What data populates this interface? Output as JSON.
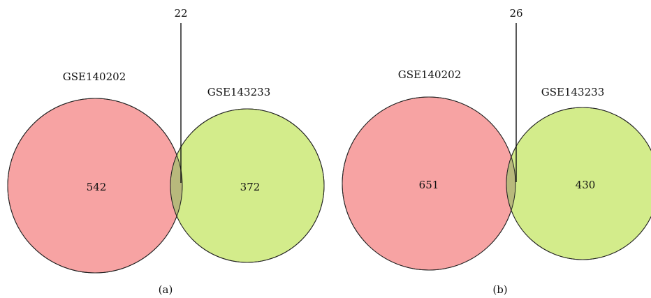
{
  "colors": {
    "set_a_fill": "#f7a3a3",
    "set_b_fill": "#d3ec8b",
    "overlap_fill": "#b8b97c",
    "stroke": "#222222"
  },
  "panels": [
    {
      "panel_label": "(a)",
      "set_a": {
        "name": "GSE140202",
        "count": "542"
      },
      "set_b": {
        "name": "GSE143233",
        "count": "372"
      },
      "overlap": {
        "count": "22"
      }
    },
    {
      "panel_label": "(b)",
      "set_a": {
        "name": "GSE140202",
        "count": "651"
      },
      "set_b": {
        "name": "GSE143233",
        "count": "430"
      },
      "overlap": {
        "count": "26"
      }
    }
  ]
}
